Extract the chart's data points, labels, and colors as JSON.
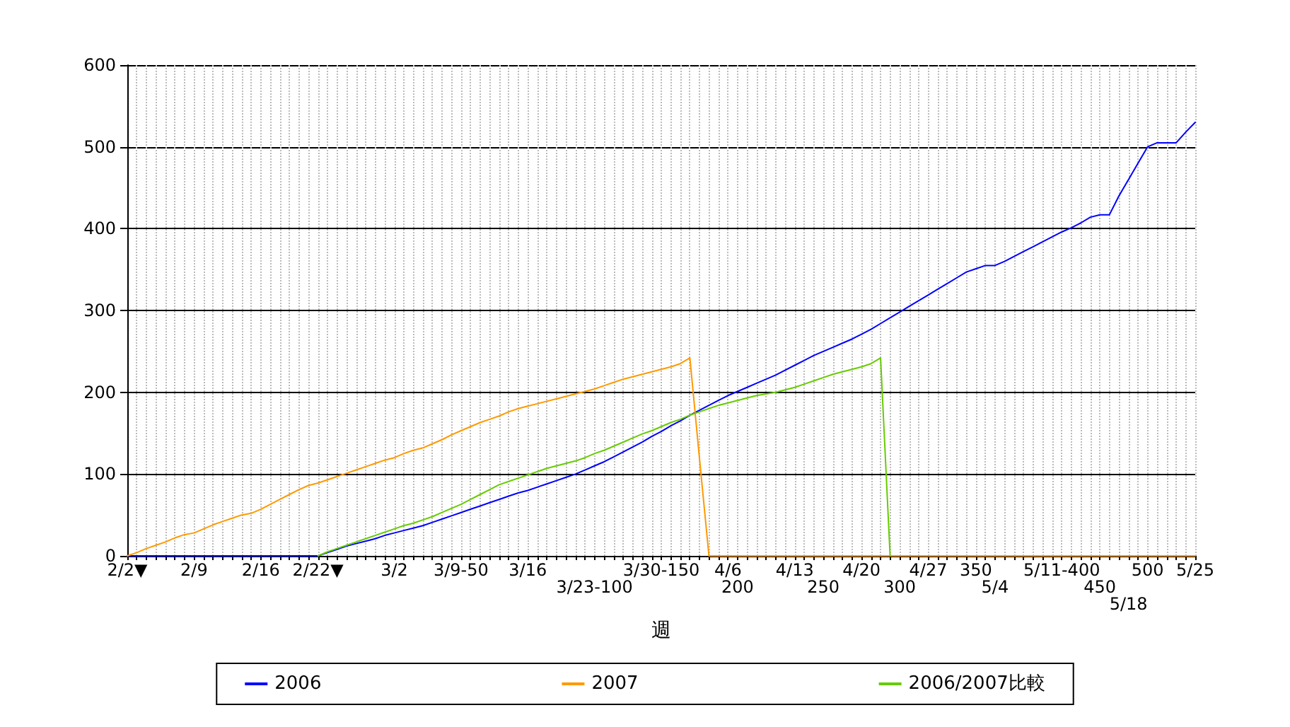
{
  "chart_data": {
    "type": "line",
    "xlabel": "週",
    "categories": [
      "2/2▼",
      null,
      null,
      null,
      null,
      null,
      null,
      "2/9",
      null,
      null,
      null,
      null,
      null,
      null,
      "2/16",
      null,
      null,
      null,
      null,
      null,
      "2/22▼",
      null,
      null,
      null,
      null,
      null,
      null,
      null,
      "3/2",
      null,
      null,
      null,
      null,
      null,
      null,
      "3/9-50",
      null,
      null,
      null,
      null,
      null,
      null,
      "3/16",
      null,
      null,
      null,
      null,
      null,
      null,
      "3/23-100",
      null,
      null,
      null,
      null,
      null,
      null,
      "3/30-150",
      null,
      null,
      null,
      null,
      null,
      null,
      "4/6",
      "200",
      null,
      null,
      null,
      null,
      null,
      "4/13",
      null,
      null,
      "250",
      null,
      null,
      null,
      "4/20",
      null,
      null,
      null,
      "300",
      null,
      null,
      "4/27",
      null,
      null,
      null,
      null,
      "350",
      null,
      "5/4",
      null,
      null,
      null,
      null,
      null,
      null,
      "5/11-400",
      null,
      null,
      null,
      "450",
      null,
      null,
      "5/18",
      null,
      "500",
      null,
      null,
      null,
      null,
      "5/25"
    ],
    "series": [
      {
        "name": "2006",
        "color": "#0000ff",
        "values": [
          0,
          0,
          0,
          0,
          0,
          0,
          0,
          0,
          0,
          0,
          0,
          0,
          0,
          0,
          0,
          0,
          0,
          0,
          0,
          0,
          0,
          4,
          8,
          12,
          15,
          18,
          21,
          25,
          28,
          31,
          34,
          37,
          41,
          45,
          49,
          53,
          57,
          61,
          65,
          69,
          73,
          77,
          80,
          84,
          88,
          92,
          96,
          100,
          105,
          110,
          115,
          121,
          127,
          133,
          139,
          146,
          152,
          159,
          165,
          172,
          178,
          184,
          190,
          196,
          201,
          206,
          211,
          216,
          221,
          227,
          233,
          239,
          245,
          250,
          255,
          260,
          265,
          271,
          277,
          284,
          291,
          298,
          305,
          312,
          319,
          326,
          333,
          340,
          347,
          351,
          355,
          355,
          360,
          366,
          372,
          378,
          384,
          390,
          396,
          401,
          407,
          414,
          417,
          417,
          440,
          460,
          480,
          500,
          505,
          505,
          505,
          518,
          530
        ]
      },
      {
        "name": "2007",
        "color": "#ff9900",
        "values": [
          0,
          4,
          9,
          13,
          17,
          22,
          26,
          28,
          33,
          38,
          42,
          46,
          50,
          52,
          57,
          63,
          69,
          75,
          81,
          86,
          89,
          93,
          97,
          101,
          105,
          109,
          113,
          117,
          120,
          125,
          129,
          132,
          137,
          142,
          148,
          153,
          158,
          163,
          167,
          171,
          176,
          180,
          183,
          186,
          189,
          192,
          195,
          198,
          201,
          204,
          208,
          212,
          216,
          219,
          222,
          225,
          228,
          231,
          235,
          242,
          120,
          0,
          0,
          0,
          0,
          0,
          0,
          0,
          0,
          0,
          0,
          0,
          0,
          0,
          0,
          0,
          0,
          0,
          0,
          0,
          0,
          0,
          0,
          0,
          0,
          0,
          0,
          0,
          0,
          0,
          0,
          0,
          0,
          0,
          0,
          0,
          0,
          0,
          0,
          0,
          0,
          0,
          0,
          0,
          0,
          0,
          0,
          0,
          0,
          0,
          0,
          0,
          0
        ]
      },
      {
        "name": "2006/2007比較",
        "color": "#66cc00",
        "values": [
          null,
          null,
          null,
          null,
          null,
          null,
          null,
          null,
          null,
          null,
          null,
          null,
          null,
          null,
          null,
          null,
          null,
          null,
          null,
          null,
          0,
          5,
          9,
          13,
          17,
          21,
          25,
          29,
          33,
          37,
          40,
          44,
          48,
          53,
          58,
          63,
          69,
          75,
          81,
          87,
          91,
          95,
          99,
          103,
          107,
          110,
          113,
          116,
          120,
          125,
          129,
          134,
          139,
          144,
          149,
          153,
          158,
          163,
          167,
          172,
          176,
          180,
          184,
          187,
          190,
          193,
          196,
          198,
          200,
          203,
          206,
          210,
          214,
          218,
          222,
          225,
          228,
          231,
          235,
          242,
          0,
          null,
          null,
          null,
          null,
          null,
          null,
          null,
          null,
          null,
          null,
          null,
          null,
          null,
          null,
          null,
          null,
          null,
          null,
          null,
          null,
          null,
          null,
          null,
          null,
          null,
          null,
          null,
          null,
          null,
          null,
          null,
          null
        ]
      }
    ],
    "ylim": [
      0,
      600
    ],
    "yticks": [
      0,
      100,
      200,
      300,
      400,
      500,
      600
    ],
    "grid": true,
    "legend": "bottom",
    "marker": "none",
    "line_style": "solid"
  }
}
